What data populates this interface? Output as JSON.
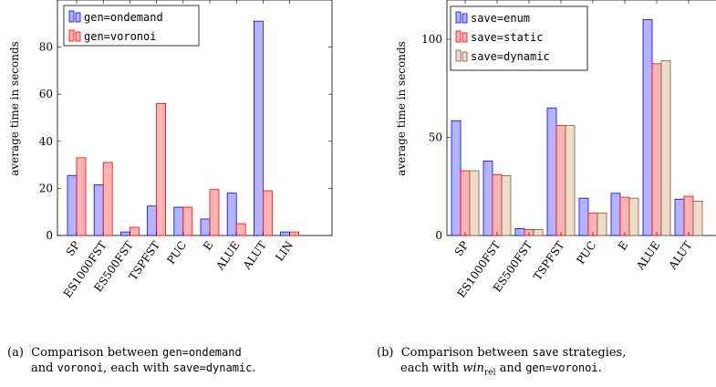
{
  "chart_data": [
    {
      "type": "bar",
      "ylabel": "average time in seconds",
      "ylim": [
        0,
        100
      ],
      "yticks": [
        0,
        20,
        40,
        60,
        80
      ],
      "categories": [
        "SP",
        "ES1000FST",
        "ES500FST",
        "TSPFST",
        "PUC",
        "E",
        "ALUE",
        "ALUT",
        "LIN"
      ],
      "series": [
        {
          "name": "gen=ondemand",
          "color": "#b3b3ff",
          "stroke": "#0000ff",
          "values": [
            25.5,
            21.5,
            1.5,
            12.5,
            12,
            7,
            18,
            91,
            1.5
          ]
        },
        {
          "name": "gen=voronoi",
          "color": "#ffb3b3",
          "stroke": "#ff0000",
          "values": [
            33,
            31,
            3.5,
            56,
            12,
            19.5,
            5,
            19,
            1.5
          ]
        }
      ],
      "legend_position": "top-left",
      "grid": false
    },
    {
      "type": "bar",
      "ylabel": "average time in seconds",
      "ylim": [
        0,
        120
      ],
      "yticks": [
        0,
        50,
        100
      ],
      "categories": [
        "SP",
        "ES1000FST",
        "ES500FST",
        "TSPFST",
        "PUC",
        "E",
        "ALUE",
        "ALUT"
      ],
      "series": [
        {
          "name": "save=enum",
          "color": "#b3b3ff",
          "stroke": "#0000ff",
          "values": [
            58.5,
            38,
            3.5,
            65,
            19,
            21.5,
            110,
            18.5
          ]
        },
        {
          "name": "save=static",
          "color": "#ffb3b3",
          "stroke": "#ff0000",
          "values": [
            33,
            31,
            3,
            56,
            11.5,
            19.5,
            87.5,
            20
          ]
        },
        {
          "name": "save=dynamic",
          "color": "#ecdcc8",
          "stroke": "#7a5a3a",
          "values": [
            33,
            30.5,
            3,
            56,
            11.5,
            19,
            89,
            17.5
          ]
        }
      ],
      "legend_position": "top-left",
      "grid": false
    }
  ],
  "captions": {
    "a": {
      "tag": "(a)",
      "t1": "Comparison between",
      "m1": "gen=ondemand",
      "t2": "and",
      "m2": "voronoi",
      "t3": ", each with",
      "m3": "save=dynamic",
      "t4": "."
    },
    "b": {
      "tag": "(b)",
      "t1": "Comparison between",
      "m1": "save",
      "t2": "strategies,",
      "t3": "each with",
      "i1": "win",
      "sub": "rel",
      "t4": "and",
      "m2": "gen=voronoi",
      "t5": "."
    }
  }
}
